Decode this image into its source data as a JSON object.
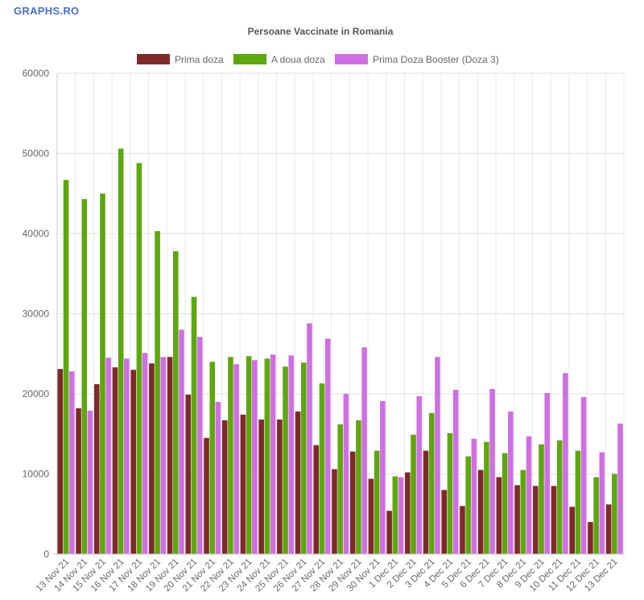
{
  "brand": "GRAPHS.RO",
  "chart_data": {
    "type": "bar",
    "title": "Persoane Vaccinate in Romania",
    "xlabel": "",
    "ylabel": "",
    "ylim": [
      0,
      60000
    ],
    "yticks": [
      0,
      10000,
      20000,
      30000,
      40000,
      50000,
      60000
    ],
    "grid": true,
    "legend_position": "top",
    "categories": [
      "13 Nov 21",
      "14 Nov 21",
      "15 Nov 21",
      "16 Nov 21",
      "17 Nov 21",
      "18 Nov 21",
      "19 Nov 21",
      "20 Nov 21",
      "21 Nov 21",
      "22 Nov 21",
      "23 Nov 21",
      "24 Nov 21",
      "25 Nov 21",
      "26 Nov 21",
      "27 Nov 21",
      "28 Nov 21",
      "29 Nov 21",
      "30 Nov 21",
      "1 Dec 21",
      "2 Dec 21",
      "3 Dec 21",
      "4 Dec 21",
      "5 Dec 21",
      "6 Dec 21",
      "7 Dec 21",
      "8 Dec 21",
      "9 Dec 21",
      "10 Dec 21",
      "11 Dec 21",
      "12 Dec 21",
      "13 Dec 21"
    ],
    "series": [
      {
        "name": "Prima doza",
        "color": "#7f2a2a",
        "values": [
          23100,
          18200,
          21200,
          23300,
          23000,
          23800,
          24600,
          19900,
          14500,
          16700,
          17400,
          16800,
          16800,
          17800,
          13600,
          10600,
          12800,
          9400,
          5400,
          10200,
          12900,
          8000,
          6000,
          10500,
          9600,
          8600,
          8500,
          8500,
          5900,
          4000,
          6200
        ]
      },
      {
        "name": "A doua doza",
        "color": "#5ea70e",
        "values": [
          46700,
          44300,
          45000,
          50600,
          48800,
          40300,
          37800,
          32100,
          24000,
          24600,
          24700,
          24400,
          23400,
          23900,
          21300,
          16200,
          16700,
          12900,
          9700,
          14900,
          17600,
          15100,
          12200,
          14000,
          12600,
          10500,
          13700,
          14200,
          12900,
          9600,
          10000
        ]
      },
      {
        "name": "Prima Doza Booster (Doza 3)",
        "color": "#cf6fe3",
        "values": [
          22800,
          17900,
          24500,
          24400,
          25100,
          24600,
          28000,
          27100,
          19000,
          23700,
          24200,
          24900,
          24800,
          28800,
          26900,
          20000,
          25800,
          19100,
          9600,
          19700,
          24600,
          20500,
          14400,
          20600,
          17800,
          14700,
          20100,
          22600,
          19600,
          12700,
          16300
        ]
      }
    ]
  }
}
